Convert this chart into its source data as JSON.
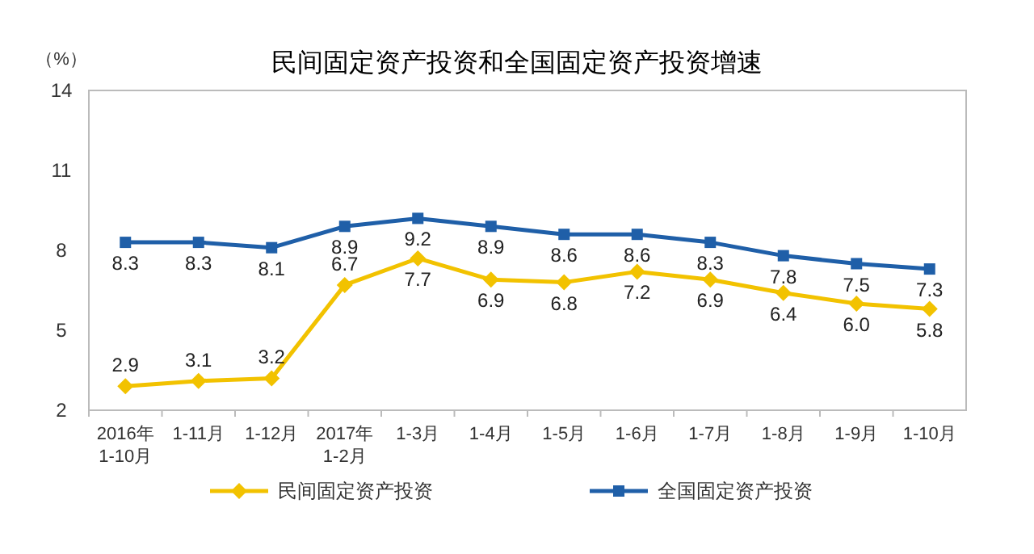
{
  "chart_data": {
    "type": "line",
    "title": "民间固定资产投资和全国固定资产投资增速",
    "ylabel": "（%）",
    "categories": [
      "2016年\n1-10月",
      "1-11月",
      "1-12月",
      "2017年\n1-2月",
      "1-3月",
      "1-4月",
      "1-5月",
      "1-6月",
      "1-7月",
      "1-8月",
      "1-9月",
      "1-10月"
    ],
    "series": [
      {
        "name": "民间固定资产投资",
        "color": "#f2c200",
        "marker": "diamond",
        "values": [
          2.9,
          3.1,
          3.2,
          6.7,
          7.7,
          6.9,
          6.8,
          7.2,
          6.9,
          6.4,
          6.0,
          5.8
        ],
        "value_labels": [
          "2.9",
          "3.1",
          "3.2",
          "6.7",
          "7.7",
          "6.9",
          "6.8",
          "7.2",
          "6.9",
          "6.4",
          "6.0",
          "5.8"
        ]
      },
      {
        "name": "全国固定资产投资",
        "color": "#1f5fa8",
        "marker": "square",
        "values": [
          8.3,
          8.3,
          8.1,
          8.9,
          9.2,
          8.9,
          8.6,
          8.6,
          8.3,
          7.8,
          7.5,
          7.3
        ],
        "value_labels": [
          "8.3",
          "8.3",
          "8.1",
          "8.9",
          "9.2",
          "8.9",
          "8.6",
          "8.6",
          "8.3",
          "7.8",
          "7.5",
          "7.3"
        ]
      }
    ],
    "ylim": [
      2,
      14
    ],
    "yticks": [
      2,
      5,
      8,
      11,
      14
    ],
    "legend": "bottom",
    "grid": false
  }
}
